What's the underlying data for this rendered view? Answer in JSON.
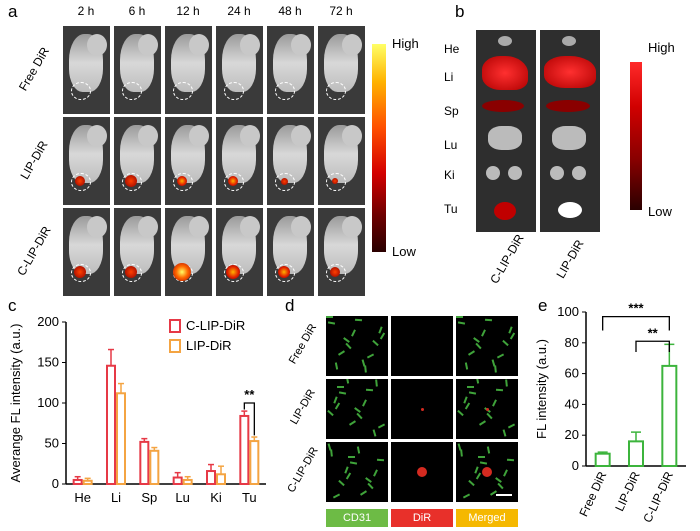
{
  "panel_a": {
    "label": "a",
    "times": [
      "2 h",
      "6 h",
      "12 h",
      "24 h",
      "48 h",
      "72 h"
    ],
    "groups": [
      "Free DiR",
      "LIP-DiR",
      "C-LIP-DiR"
    ],
    "scale_high": "High",
    "scale_low": "Low"
  },
  "panel_b": {
    "label": "b",
    "organs": [
      "He",
      "Li",
      "Sp",
      "Lu",
      "Ki",
      "Tu"
    ],
    "columns": [
      "C-LIP-DiR",
      "LIP-DiR"
    ],
    "scale_high": "High",
    "scale_low": "Low"
  },
  "panel_c": {
    "label": "c",
    "significance": "**"
  },
  "panel_d": {
    "label": "d",
    "rows": [
      "Free DiR",
      "LIP-DiR",
      "C-LIP-DiR"
    ],
    "channels": [
      "CD31",
      "DiR",
      "Merged"
    ],
    "channel_colors": [
      "#6dbb45",
      "#e8302a",
      "#f5b800"
    ]
  },
  "panel_e": {
    "label": "e",
    "sig_top": "***",
    "sig_bottom": "**"
  },
  "chart_data": [
    {
      "type": "bar",
      "panel": "c",
      "ylabel": "Averange FL intensity (a.u.)",
      "categories": [
        "He",
        "Li",
        "Sp",
        "Lu",
        "Ki",
        "Tu"
      ],
      "ylim": [
        0,
        200
      ],
      "yticks": [
        0,
        50,
        100,
        150,
        200
      ],
      "legend_position": "top-right",
      "series": [
        {
          "name": "C-LIP-DiR",
          "color": "#e63946",
          "values": [
            5,
            146,
            52,
            8,
            16,
            84
          ],
          "errors": [
            4,
            20,
            4,
            6,
            8,
            6
          ]
        },
        {
          "name": "LIP-DiR",
          "color": "#f4a442",
          "values": [
            4,
            112,
            41,
            5,
            12,
            53
          ],
          "errors": [
            3,
            12,
            4,
            4,
            10,
            5
          ]
        }
      ]
    },
    {
      "type": "bar",
      "panel": "e",
      "ylabel": "FL intensity (a.u.)",
      "categories": [
        "Free DiR",
        "LIP-DiR",
        "C-LIP-DiR"
      ],
      "ylim": [
        0,
        100
      ],
      "yticks": [
        0,
        20,
        40,
        60,
        80,
        100
      ],
      "series": [
        {
          "color": "#3cb43c",
          "values": [
            8,
            16,
            65
          ],
          "errors": [
            1,
            6,
            14
          ]
        }
      ]
    }
  ]
}
